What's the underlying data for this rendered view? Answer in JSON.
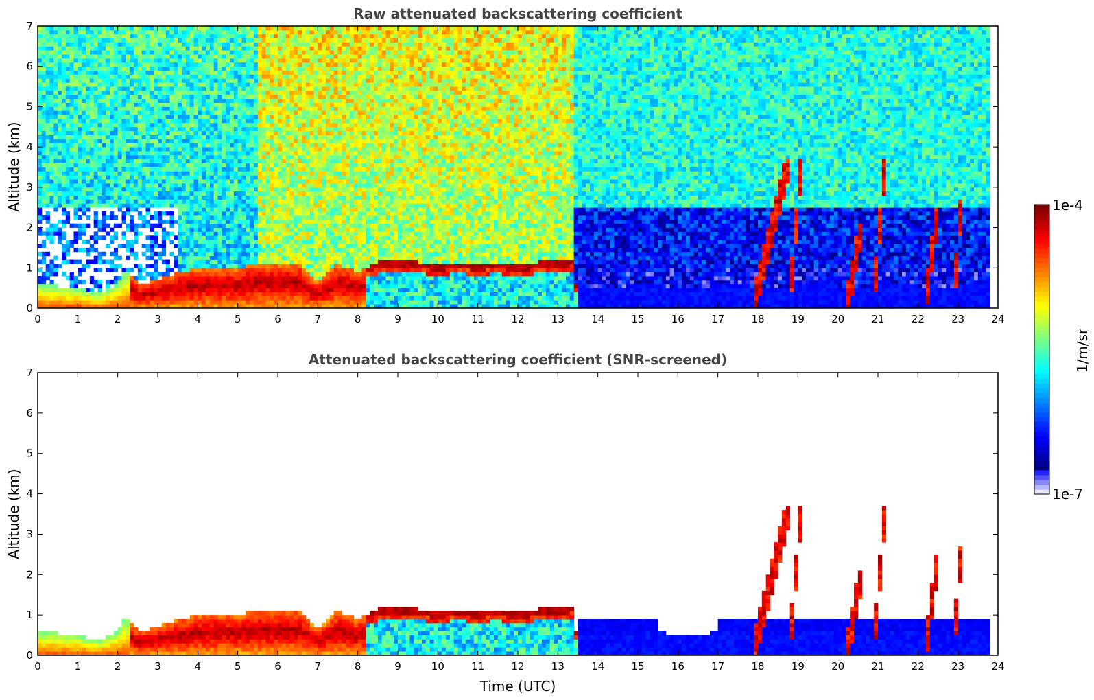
{
  "chart_data": [
    {
      "type": "heatmap",
      "title": "Raw attenuated backscattering coefficient",
      "xlabel": "",
      "ylabel": "Altitude (km)",
      "xlim": [
        0,
        24
      ],
      "ylim": [
        0,
        7
      ],
      "x_ticks": [
        "0",
        "1",
        "2",
        "3",
        "4",
        "5",
        "6",
        "7",
        "8",
        "9",
        "10",
        "11",
        "12",
        "13",
        "14",
        "15",
        "16",
        "17",
        "18",
        "19",
        "20",
        "21",
        "22",
        "23",
        "24"
      ],
      "y_ticks": [
        "0",
        "1",
        "2",
        "3",
        "4",
        "5",
        "6",
        "7"
      ],
      "colorscale": "jet-log",
      "boundary_layer_top_km": [
        [
          0,
          0.6
        ],
        [
          0.5,
          0.55
        ],
        [
          1,
          0.5
        ],
        [
          1.5,
          0.35
        ],
        [
          2,
          0.6
        ],
        [
          2.2,
          0.95
        ],
        [
          2.5,
          0.6
        ],
        [
          3,
          0.7
        ],
        [
          3.5,
          0.9
        ],
        [
          4,
          1.0
        ],
        [
          4.5,
          1.05
        ],
        [
          5,
          1.0
        ],
        [
          5.5,
          1.15
        ],
        [
          6,
          1.1
        ],
        [
          6.5,
          1.15
        ],
        [
          7,
          0.6
        ],
        [
          7.5,
          1.1
        ],
        [
          8,
          0.9
        ],
        [
          8.5,
          1.15
        ],
        [
          9,
          1.2
        ],
        [
          9.5,
          1.15
        ],
        [
          10,
          1.1
        ],
        [
          10.5,
          1.15
        ],
        [
          11,
          1.1
        ],
        [
          11.5,
          1.15
        ],
        [
          12,
          1.05
        ],
        [
          12.5,
          1.15
        ],
        [
          13,
          1.2
        ],
        [
          13.4,
          1.25
        ]
      ],
      "cloud_features": [
        {
          "start_utc": 17.9,
          "end_utc": 18.8,
          "base_km": 0.2,
          "top_km": 3.7
        },
        {
          "start_utc": 18.8,
          "end_utc": 19.1,
          "base_km": 0.3,
          "top_km": 3.8
        },
        {
          "start_utc": 20.2,
          "end_utc": 20.6,
          "base_km": 0.0,
          "top_km": 2.1
        },
        {
          "start_utc": 20.9,
          "end_utc": 21.2,
          "base_km": 0.3,
          "top_km": 3.8
        },
        {
          "start_utc": 22.2,
          "end_utc": 22.5,
          "base_km": 0.1,
          "top_km": 2.5
        },
        {
          "start_utc": 22.9,
          "end_utc": 23.1,
          "base_km": 0.3,
          "top_km": 2.9
        }
      ]
    },
    {
      "type": "heatmap",
      "title": "Attenuated backscattering coefficient (SNR-screened)",
      "xlabel": "Time (UTC)",
      "ylabel": "Altitude (km)",
      "xlim": [
        0,
        24
      ],
      "ylim": [
        0,
        7
      ],
      "x_ticks": [
        "0",
        "1",
        "2",
        "3",
        "4",
        "5",
        "6",
        "7",
        "8",
        "9",
        "10",
        "11",
        "12",
        "13",
        "14",
        "15",
        "16",
        "17",
        "18",
        "19",
        "20",
        "21",
        "22",
        "23",
        "24"
      ],
      "y_ticks": [
        "0",
        "1",
        "2",
        "3",
        "4",
        "5",
        "6",
        "7"
      ],
      "colorscale": "jet-log"
    }
  ],
  "colorbar": {
    "label": "1/m/sr",
    "max_label": "1e-4",
    "min_label": "1e-7",
    "scale": "log",
    "colors": [
      "#e6e6fa",
      "#c8c8f0",
      "#9ea0f0",
      "#6e78f0",
      "#0000ff",
      "#0040ff",
      "#0080ff",
      "#00c0ff",
      "#00ffff",
      "#40ffbf",
      "#80ff80",
      "#c0ff40",
      "#ffff00",
      "#ffc000",
      "#ff8000",
      "#ff4000",
      "#ff0000",
      "#c00000",
      "#800000"
    ]
  }
}
